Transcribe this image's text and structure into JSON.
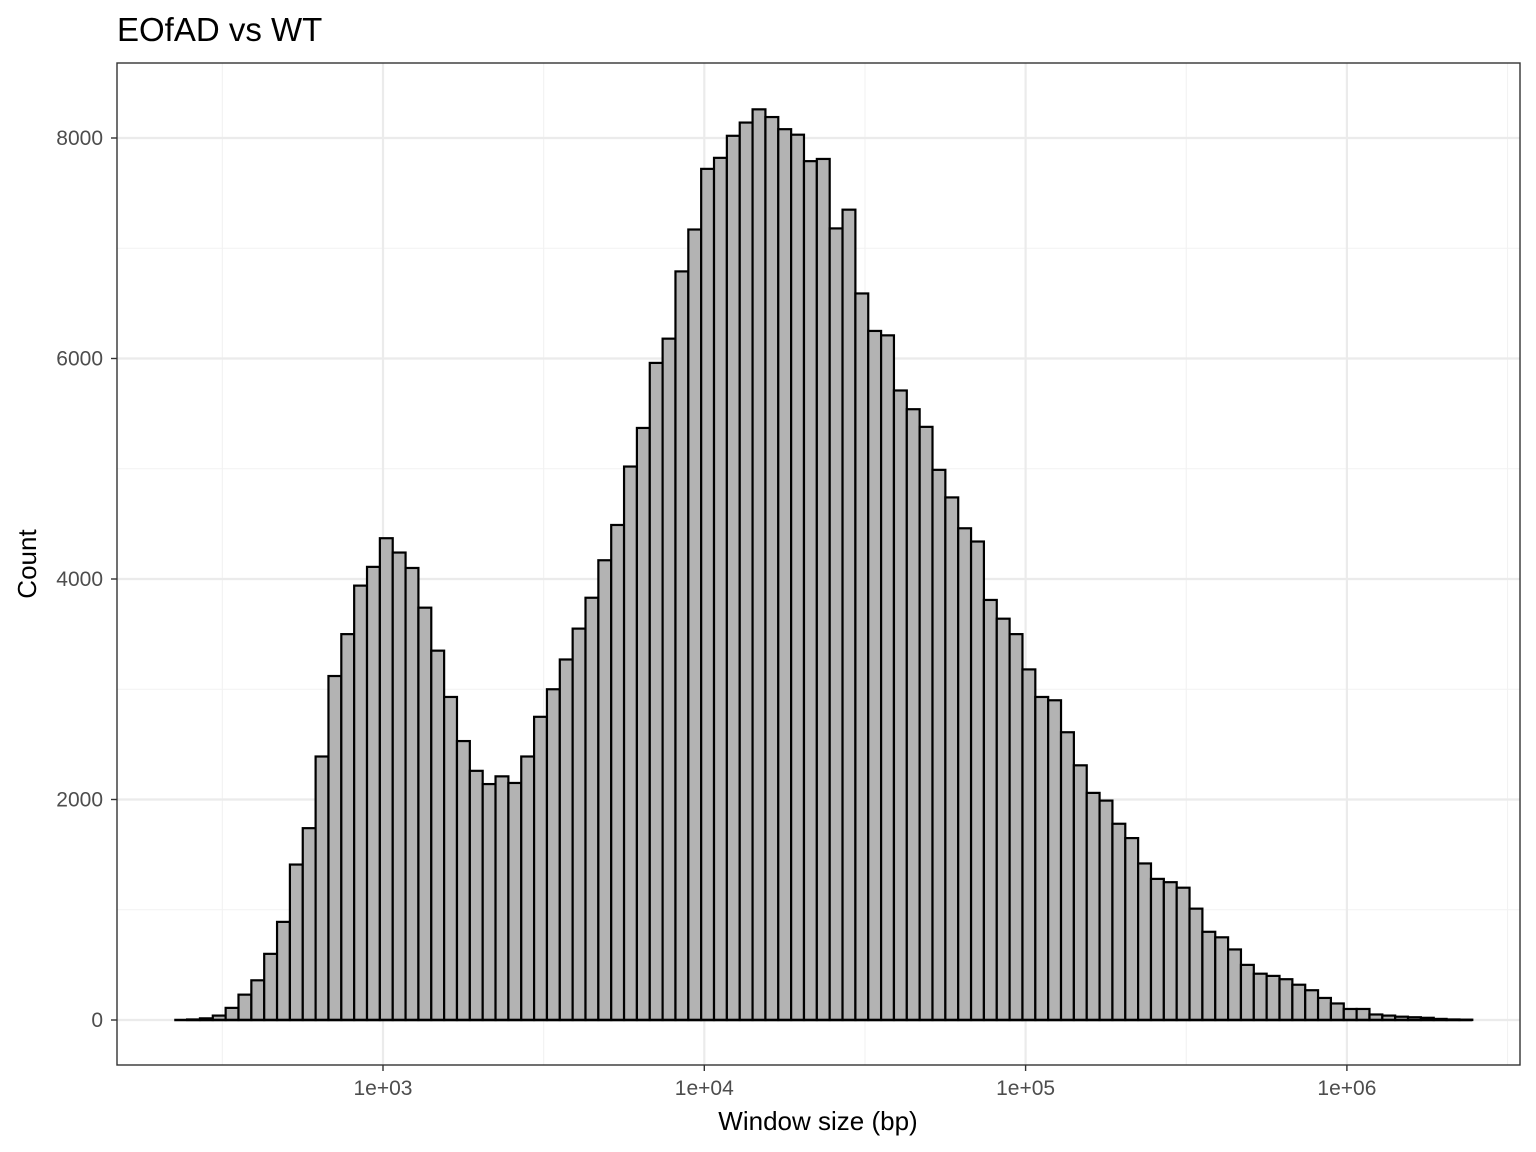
{
  "chart_data": {
    "type": "bar",
    "title": "EOfAD vs WT",
    "xlabel": "Window size (bp)",
    "ylabel": "Count",
    "x_scale": "log10",
    "x_range": [
      160,
      3000000
    ],
    "ylim": [
      -400,
      8600
    ],
    "grid": true,
    "x_ticks": [
      {
        "value": 1000,
        "label": "1e+03"
      },
      {
        "value": 10000,
        "label": "1e+04"
      },
      {
        "value": 100000,
        "label": "1e+05"
      },
      {
        "value": 1000000,
        "label": "1e+06"
      }
    ],
    "y_ticks": [
      {
        "value": 0,
        "label": "0"
      },
      {
        "value": 2000,
        "label": "2000"
      },
      {
        "value": 4000,
        "label": "4000"
      },
      {
        "value": 6000,
        "label": "6000"
      },
      {
        "value": 8000,
        "label": "8000"
      }
    ],
    "bin_width_log10": 0.04,
    "first_bin_left": 224,
    "counts": [
      0,
      5,
      15,
      40,
      110,
      230,
      360,
      600,
      890,
      1410,
      1740,
      2390,
      3120,
      3500,
      3940,
      4110,
      4370,
      4240,
      4100,
      3740,
      3350,
      2930,
      2530,
      2260,
      2140,
      2210,
      2150,
      2390,
      2750,
      3000,
      3270,
      3550,
      3830,
      4170,
      4490,
      5020,
      5370,
      5960,
      6180,
      6790,
      7170,
      7720,
      7820,
      8020,
      8140,
      8260,
      8190,
      8080,
      8030,
      7790,
      7810,
      7180,
      7350,
      6590,
      6250,
      6210,
      5710,
      5540,
      5380,
      4990,
      4740,
      4460,
      4340,
      3810,
      3640,
      3500,
      3180,
      2930,
      2900,
      2610,
      2310,
      2060,
      1990,
      1780,
      1650,
      1420,
      1280,
      1250,
      1200,
      1010,
      800,
      750,
      640,
      500,
      420,
      400,
      370,
      320,
      270,
      200,
      150,
      100,
      100,
      50,
      40,
      30,
      25,
      20,
      10,
      5,
      3
    ]
  }
}
